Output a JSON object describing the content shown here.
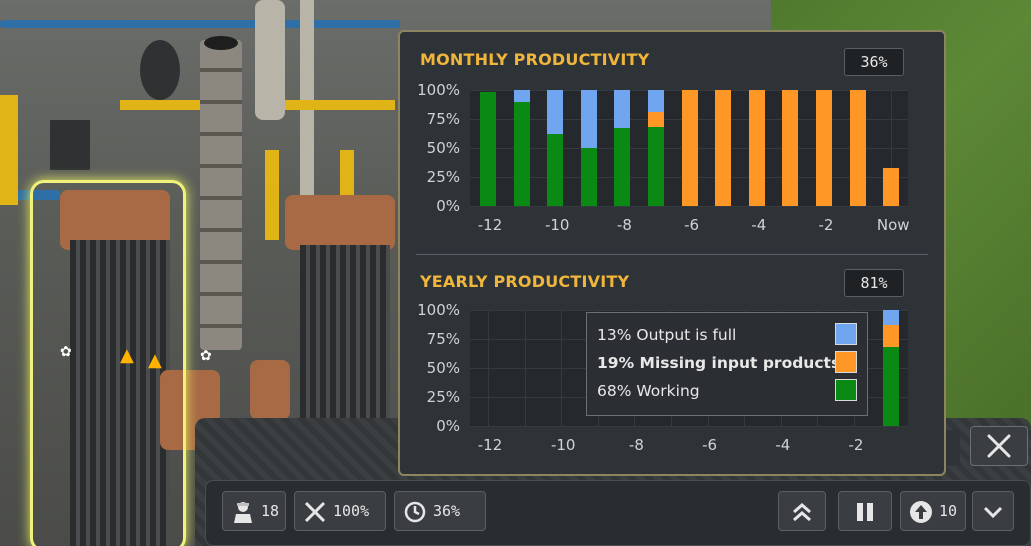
{
  "panel": {
    "monthly": {
      "title": "MONTHLY PRODUCTIVITY",
      "value": "36%"
    },
    "yearly": {
      "title": "YEARLY PRODUCTIVITY",
      "value": "81%"
    },
    "y_ticks": [
      "100%",
      "75%",
      "50%",
      "25%",
      "0%"
    ],
    "monthly_x_ticks": [
      "-12",
      "-10",
      "-8",
      "-6",
      "-4",
      "-2",
      "Now"
    ],
    "yearly_x_ticks": [
      "-12",
      "-10",
      "-8",
      "-6",
      "-4",
      "-2"
    ],
    "legend": [
      {
        "pct": "13%",
        "label": "Output is full",
        "color": "#6fa6ef",
        "bold": false
      },
      {
        "pct": "19%",
        "label": "Missing input products",
        "color": "#ff9726",
        "bold": true
      },
      {
        "pct": "68%",
        "label": "Working",
        "color": "#0a8a14",
        "bold": false
      }
    ]
  },
  "chart_data": [
    {
      "type": "bar",
      "title": "MONTHLY PRODUCTIVITY",
      "stacked": true,
      "categories": [
        "-12",
        "-11",
        "-10",
        "-9",
        "-8",
        "-7",
        "-6",
        "-5",
        "-4",
        "-3",
        "-2",
        "-1",
        "Now"
      ],
      "series": [
        {
          "name": "Working",
          "color": "#0a8a14",
          "values": [
            98,
            90,
            62,
            50,
            67,
            68,
            0,
            0,
            0,
            0,
            0,
            0,
            0
          ]
        },
        {
          "name": "Missing input products",
          "color": "#ff9726",
          "values": [
            0,
            0,
            0,
            0,
            0,
            13,
            100,
            100,
            100,
            100,
            100,
            100,
            33
          ]
        },
        {
          "name": "Output is full",
          "color": "#6fa6ef",
          "values": [
            0,
            10,
            38,
            50,
            33,
            19,
            0,
            0,
            0,
            0,
            0,
            0,
            0
          ]
        }
      ],
      "ylim": [
        0,
        100
      ]
    },
    {
      "type": "bar",
      "title": "YEARLY PRODUCTIVITY",
      "stacked": true,
      "categories": [
        "-12",
        "-11",
        "-10",
        "-9",
        "-8",
        "-7",
        "-6",
        "-5",
        "-4",
        "-3",
        "-2",
        "-1"
      ],
      "series": [
        {
          "name": "Working",
          "color": "#0a8a14",
          "values": [
            0,
            0,
            0,
            0,
            0,
            0,
            0,
            0,
            0,
            0,
            0,
            68
          ]
        },
        {
          "name": "Missing input products",
          "color": "#ff9726",
          "values": [
            0,
            0,
            0,
            0,
            0,
            0,
            0,
            0,
            0,
            0,
            0,
            19
          ]
        },
        {
          "name": "Output is full",
          "color": "#6fa6ef",
          "values": [
            0,
            0,
            0,
            0,
            0,
            0,
            0,
            0,
            0,
            0,
            0,
            13
          ]
        }
      ],
      "ylim": [
        0,
        100
      ]
    }
  ],
  "toolbar": {
    "workers": "18",
    "efficiency": "100%",
    "productivity": "36%",
    "upgrade_level": "10"
  },
  "icons": {
    "workers": "worker-icon",
    "tools": "tools-icon",
    "productivity": "clock-cycle-icon",
    "priority": "double-chevron-up-icon",
    "pause": "pause-icon",
    "upgrade": "arrow-up-circle-icon",
    "expand": "chevron-down-icon",
    "close": "close-icon"
  }
}
